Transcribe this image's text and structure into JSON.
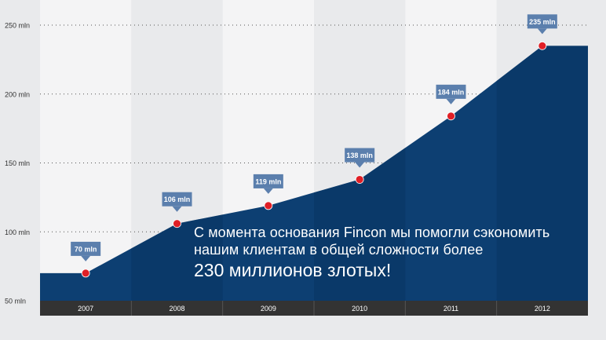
{
  "chart_data": {
    "type": "area",
    "x": [
      "2007",
      "2008",
      "2009",
      "2010",
      "2011",
      "2012"
    ],
    "values": [
      70,
      106,
      119,
      138,
      184,
      235
    ],
    "data_labels": [
      "70 mln",
      "106 mln",
      "119 mln",
      "138 mln",
      "184 mln",
      "235 mln"
    ],
    "y_ticks": [
      50,
      100,
      150,
      200,
      250
    ],
    "y_tick_labels": [
      "50 mln",
      "100 mln",
      "150 mln",
      "200 mln",
      "250 mln"
    ],
    "ylim": [
      50,
      250
    ],
    "grid": true,
    "title": "",
    "xlabel": "",
    "ylabel": ""
  },
  "overlay": {
    "line1": "С момента основания Fincon мы помогли сэкономить",
    "line2": "нашим клиентам в общей сложности более",
    "line3": "230 миллионов злотых!"
  },
  "colors": {
    "background": "#e9eaec",
    "column_light": "#f4f4f5",
    "area_fill": "#0d3f72",
    "area_fill_dark": "#0a3563",
    "point": "#e01f26",
    "label_box": "#5b7fad",
    "axis_band": "#333333",
    "text": "#ffffff"
  }
}
